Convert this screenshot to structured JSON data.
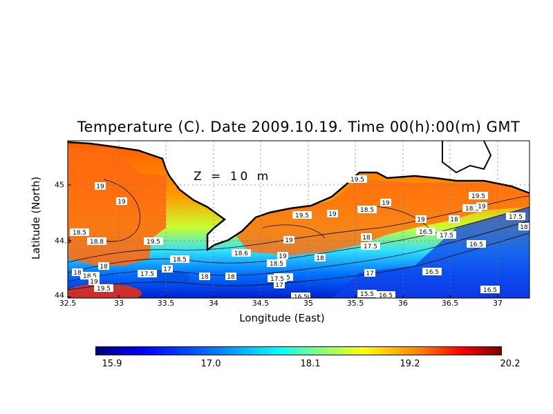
{
  "title": "Temperature (C). Date 2009.10.19. Time 00(h):00(m) GMT",
  "depth_label": "Z = 10 m",
  "axes": {
    "xlabel": "Longitude (East)",
    "ylabel": "Latitude (North)",
    "xticks": [
      "32.5",
      "33",
      "33.5",
      "34",
      "34.5",
      "35",
      "35.5",
      "36",
      "36.5",
      "37"
    ],
    "yticks": [
      "45",
      "44.5",
      "44"
    ]
  },
  "colorbar": {
    "labels": [
      "15.9",
      "17.0",
      "18.1",
      "19.2",
      "20.2"
    ],
    "colors": [
      "#00007f",
      "#0000ff",
      "#0080ff",
      "#00ffff",
      "#7fff7f",
      "#ffff00",
      "#ff8000",
      "#ff0000",
      "#7f0000"
    ]
  },
  "contour_labels": [
    "19",
    "19",
    "18.5",
    "18.8",
    "19.5",
    "18.5",
    "17",
    "18",
    "17.5",
    "18",
    "18.5",
    "19",
    "19.5",
    "18",
    "18",
    "18.6",
    "18.5",
    "19",
    "17.5",
    "17",
    "19.5",
    "19",
    "18",
    "19",
    "19.5",
    "18.5",
    "18",
    "17.5",
    "19",
    "17",
    "19",
    "16.5",
    "17.5",
    "18",
    "18.1",
    "19",
    "19.5",
    "17.5",
    "18",
    "16.5",
    "16.5",
    "16.5",
    "15.5",
    "16.5",
    "17.5",
    "16.5"
  ],
  "chart_data": {
    "type": "heatmap",
    "title": "Temperature (C). Date 2009.10.19. Time 00(h):00(m) GMT",
    "xlabel": "Longitude (East)",
    "ylabel": "Latitude (North)",
    "xlim": [
      32.5,
      37.3
    ],
    "ylim": [
      44.0,
      45.25
    ],
    "color_range": [
      15.9,
      20.2
    ],
    "grid": true
  }
}
